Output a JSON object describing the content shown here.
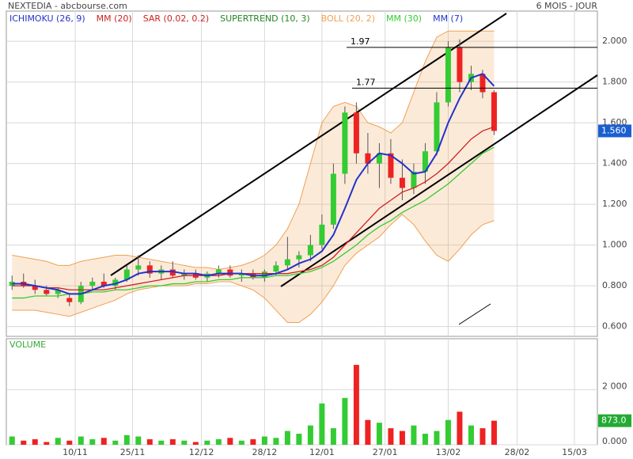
{
  "chart_data": {
    "type": "candlestick",
    "title": "NEXTEDIA - abcbourse.com",
    "subtitle": "6 MOIS - JOUR",
    "legend": [
      {
        "name": "ICHIMOKU (26, 9)",
        "color": "#2233cc"
      },
      {
        "name": "MM (20)",
        "color": "#cc2222"
      },
      {
        "name": "SAR (0.02, 0.2)",
        "color": "#cc2222"
      },
      {
        "name": "SUPERTREND (10, 3)",
        "color": "#228822"
      },
      {
        "name": "BOLL (20, 2)",
        "color": "#f0a050"
      },
      {
        "name": "MM (30)",
        "color": "#33cc33"
      },
      {
        "name": "MM (7)",
        "color": "#2233cc"
      }
    ],
    "x": [
      0,
      2,
      4,
      6,
      8,
      10,
      12,
      14,
      16,
      18,
      20,
      22,
      24,
      26,
      28,
      30,
      32,
      34,
      36,
      38,
      40,
      42,
      44,
      46,
      48,
      50,
      52,
      54,
      56,
      58,
      60,
      62,
      64,
      66,
      68,
      70,
      72,
      74,
      76,
      78,
      80,
      82,
      84
    ],
    "open": [
      0.8,
      0.82,
      0.8,
      0.78,
      0.76,
      0.74,
      0.72,
      0.8,
      0.82,
      0.8,
      0.83,
      0.88,
      0.9,
      0.86,
      0.88,
      0.85,
      0.86,
      0.84,
      0.86,
      0.88,
      0.85,
      0.86,
      0.84,
      0.87,
      0.9,
      0.93,
      0.95,
      1.0,
      1.1,
      1.35,
      1.65,
      1.45,
      1.4,
      1.45,
      1.33,
      1.28,
      1.36,
      1.46,
      1.7,
      1.97,
      1.8,
      1.84,
      1.75
    ],
    "high": [
      0.85,
      0.86,
      0.83,
      0.8,
      0.79,
      0.76,
      0.82,
      0.84,
      0.86,
      0.84,
      0.9,
      0.95,
      0.92,
      0.9,
      0.92,
      0.88,
      0.88,
      0.87,
      0.9,
      0.9,
      0.88,
      0.88,
      0.88,
      0.92,
      1.04,
      0.97,
      1.05,
      1.15,
      1.4,
      1.68,
      1.7,
      1.55,
      1.5,
      1.52,
      1.42,
      1.4,
      1.5,
      1.75,
      2.0,
      2.01,
      1.88,
      1.86,
      1.76
    ],
    "low": [
      0.78,
      0.79,
      0.76,
      0.75,
      0.74,
      0.7,
      0.71,
      0.78,
      0.79,
      0.78,
      0.82,
      0.85,
      0.84,
      0.83,
      0.84,
      0.83,
      0.83,
      0.82,
      0.84,
      0.84,
      0.82,
      0.83,
      0.82,
      0.85,
      0.88,
      0.89,
      0.92,
      0.98,
      1.08,
      1.3,
      1.4,
      1.35,
      1.28,
      1.3,
      1.22,
      1.25,
      1.3,
      1.44,
      1.68,
      1.75,
      1.76,
      1.72,
      1.54
    ],
    "close": [
      0.82,
      0.8,
      0.78,
      0.76,
      0.78,
      0.72,
      0.8,
      0.82,
      0.8,
      0.83,
      0.88,
      0.9,
      0.86,
      0.88,
      0.85,
      0.86,
      0.84,
      0.86,
      0.88,
      0.85,
      0.86,
      0.84,
      0.87,
      0.9,
      0.93,
      0.95,
      1.0,
      1.1,
      1.35,
      1.65,
      1.45,
      1.4,
      1.45,
      1.33,
      1.28,
      1.36,
      1.46,
      1.7,
      1.97,
      1.8,
      1.84,
      1.75,
      1.56
    ],
    "up_color": "#33cc33",
    "down_color": "#ee2222",
    "lines": [
      {
        "name": "BOLL (20, 2)",
        "color": "#f0a050",
        "values": [
          0.95,
          0.94,
          0.93,
          0.92,
          0.9,
          0.9,
          0.92,
          0.93,
          0.94,
          0.95,
          0.95,
          0.94,
          0.93,
          0.92,
          0.91,
          0.9,
          0.89,
          0.89,
          0.88,
          0.89,
          0.9,
          0.92,
          0.95,
          1.0,
          1.08,
          1.2,
          1.4,
          1.6,
          1.68,
          1.7,
          1.68,
          1.6,
          1.58,
          1.55,
          1.6,
          1.75,
          1.9,
          2.02,
          2.05,
          2.05,
          2.05,
          2.05,
          2.05
        ],
        "lower": [
          0.68,
          0.68,
          0.68,
          0.67,
          0.66,
          0.65,
          0.67,
          0.69,
          0.71,
          0.73,
          0.76,
          0.78,
          0.79,
          0.8,
          0.8,
          0.8,
          0.81,
          0.81,
          0.82,
          0.82,
          0.8,
          0.78,
          0.74,
          0.68,
          0.62,
          0.62,
          0.66,
          0.72,
          0.8,
          0.9,
          0.96,
          1.0,
          1.04,
          1.1,
          1.15,
          1.1,
          1.02,
          0.95,
          0.92,
          0.98,
          1.05,
          1.1,
          1.12
        ]
      },
      {
        "name": "MM (30)",
        "color": "#33cc33",
        "values": [
          0.74,
          0.74,
          0.75,
          0.75,
          0.75,
          0.76,
          0.76,
          0.77,
          0.77,
          0.78,
          0.78,
          0.79,
          0.8,
          0.8,
          0.81,
          0.81,
          0.82,
          0.82,
          0.83,
          0.83,
          0.84,
          0.84,
          0.84,
          0.85,
          0.85,
          0.86,
          0.87,
          0.89,
          0.92,
          0.96,
          1.0,
          1.05,
          1.09,
          1.12,
          1.16,
          1.19,
          1.22,
          1.26,
          1.3,
          1.35,
          1.4,
          1.45,
          1.48
        ]
      },
      {
        "name": "MM (20)",
        "color": "#cc2222",
        "values": [
          0.8,
          0.8,
          0.8,
          0.79,
          0.79,
          0.78,
          0.78,
          0.78,
          0.78,
          0.79,
          0.8,
          0.81,
          0.82,
          0.83,
          0.84,
          0.85,
          0.85,
          0.85,
          0.85,
          0.86,
          0.86,
          0.86,
          0.86,
          0.86,
          0.86,
          0.87,
          0.88,
          0.9,
          0.94,
          1.0,
          1.06,
          1.12,
          1.18,
          1.22,
          1.26,
          1.28,
          1.31,
          1.35,
          1.4,
          1.46,
          1.52,
          1.56,
          1.58
        ]
      },
      {
        "name": "MM (7)",
        "color": "#2233cc",
        "values": [
          0.81,
          0.81,
          0.8,
          0.79,
          0.78,
          0.76,
          0.76,
          0.78,
          0.8,
          0.81,
          0.83,
          0.86,
          0.87,
          0.87,
          0.87,
          0.86,
          0.86,
          0.85,
          0.86,
          0.86,
          0.86,
          0.85,
          0.85,
          0.86,
          0.88,
          0.91,
          0.93,
          0.97,
          1.05,
          1.18,
          1.32,
          1.4,
          1.45,
          1.44,
          1.4,
          1.35,
          1.36,
          1.45,
          1.6,
          1.72,
          1.82,
          1.84,
          1.78
        ]
      }
    ],
    "hlines": [
      {
        "value": 1.97,
        "label": "1.97"
      },
      {
        "value": 1.77,
        "label": "1.77"
      }
    ],
    "last_price": {
      "value": 1.56,
      "label": "1.560"
    },
    "xlim": [
      -1,
      102
    ],
    "xticks": [
      {
        "value": 11,
        "label": "10/11"
      },
      {
        "value": 21,
        "label": "25/11"
      },
      {
        "value": 33,
        "label": "12/12"
      },
      {
        "value": 44,
        "label": "28/12"
      },
      {
        "value": 54,
        "label": "12/01"
      },
      {
        "value": 65,
        "label": "27/01"
      },
      {
        "value": 76,
        "label": "13/02"
      },
      {
        "value": 88,
        "label": "28/02"
      },
      {
        "value": 98,
        "label": "15/03"
      }
    ],
    "ylim": [
      0.552,
      2.148
    ],
    "yticks": [
      {
        "value": 0.6,
        "label": "0.600"
      },
      {
        "value": 0.8,
        "label": "0.800"
      },
      {
        "value": 1.0,
        "label": "1.000"
      },
      {
        "value": 1.2,
        "label": "1.200"
      },
      {
        "value": 1.4,
        "label": "1.400"
      },
      {
        "value": 1.6,
        "label": "1.600"
      },
      {
        "value": 1.8,
        "label": "1.800"
      },
      {
        "value": 2.0,
        "label": "2.000"
      }
    ],
    "volume": {
      "title": "VOLUME",
      "values": [
        300,
        150,
        200,
        100,
        250,
        150,
        300,
        200,
        250,
        150,
        350,
        300,
        200,
        150,
        200,
        150,
        100,
        150,
        200,
        250,
        150,
        200,
        300,
        250,
        500,
        400,
        700,
        1500,
        600,
        1700,
        2900,
        900,
        800,
        600,
        500,
        700,
        400,
        500,
        900,
        1200,
        700,
        600,
        873
      ],
      "last": {
        "value": 873,
        "label": "873.0"
      },
      "ylim": [
        0,
        3850
      ],
      "yticks": [
        {
          "value": 0,
          "label": "0.000"
        },
        {
          "value": 2000,
          "label": "2 000"
        }
      ]
    },
    "grid": true
  }
}
